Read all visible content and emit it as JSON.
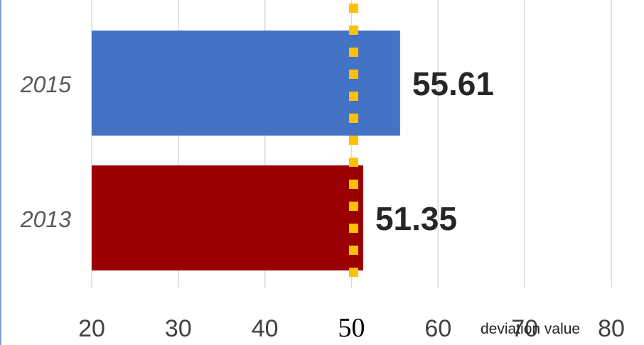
{
  "chart_data": {
    "type": "bar",
    "orientation": "horizontal",
    "categories": [
      "2015",
      "2013"
    ],
    "values": [
      55.61,
      51.35
    ],
    "value_labels": [
      "55.61",
      "51.35"
    ],
    "colors": [
      "#4472c4",
      "#9b0000"
    ],
    "xlim": [
      20,
      80
    ],
    "xticks": [
      "20",
      "30",
      "40",
      "50",
      "60",
      "70",
      "80"
    ],
    "xlabel": "deviation value",
    "grid": true,
    "reference_line": {
      "value": 50,
      "color": "#ffc000",
      "style": "dotted"
    }
  }
}
